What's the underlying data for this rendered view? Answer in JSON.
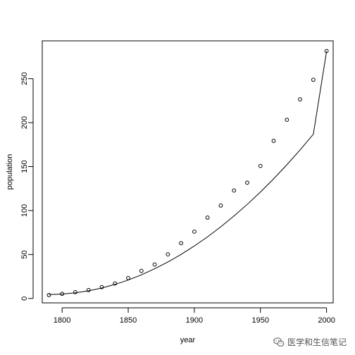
{
  "chart_data": {
    "type": "scatter",
    "title": "",
    "xlabel": "year",
    "ylabel": "population",
    "xlim": [
      1785,
      2005
    ],
    "ylim": [
      -5,
      293
    ],
    "x_ticks": [
      1800,
      1850,
      1900,
      1950,
      2000
    ],
    "y_ticks": [
      0,
      50,
      100,
      150,
      200,
      250
    ],
    "grid": false,
    "legend": "none",
    "series": [
      {
        "kind": "points",
        "x": [
          1790,
          1800,
          1810,
          1820,
          1830,
          1840,
          1850,
          1860,
          1870,
          1880,
          1890,
          1900,
          1910,
          1920,
          1930,
          1940,
          1950,
          1960,
          1970,
          1980,
          1990,
          2000
        ],
        "values": [
          3.9,
          5.3,
          7.2,
          9.6,
          12.9,
          17.1,
          23.2,
          31.4,
          38.6,
          50.2,
          62.9,
          76.0,
          92.0,
          105.7,
          122.8,
          131.7,
          150.7,
          179.3,
          203.2,
          226.5,
          248.7,
          281.4
        ]
      },
      {
        "kind": "fitted-curve",
        "x": [
          1790,
          1800,
          1810,
          1820,
          1830,
          1840,
          1850,
          1860,
          1870,
          1880,
          1890,
          1900,
          1910,
          1920,
          1930,
          1940,
          1950,
          1960,
          1970,
          1980,
          1990,
          2000
        ],
        "values": [
          4.5,
          5.0,
          6.4,
          8.7,
          11.9,
          16.0,
          21.0,
          26.9,
          33.8,
          41.5,
          50.1,
          59.7,
          70.1,
          81.5,
          93.8,
          107.0,
          121.1,
          136.1,
          152.1,
          169.0,
          186.8,
          281.0
        ]
      }
    ],
    "watermark": "医学和生信笔记"
  }
}
